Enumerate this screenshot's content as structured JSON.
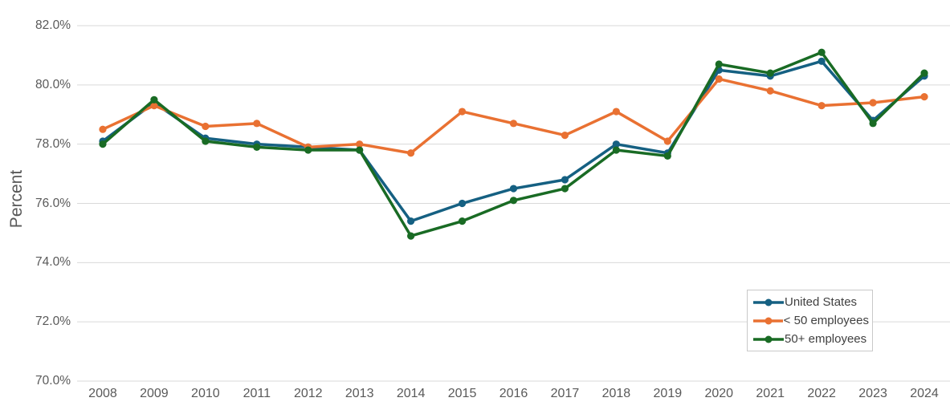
{
  "chart_data": {
    "type": "line",
    "title": "",
    "xlabel": "",
    "ylabel": "Percent",
    "categories": [
      "2008",
      "2009",
      "2010",
      "2011",
      "2012",
      "2013",
      "2014",
      "2015",
      "2016",
      "2017",
      "2018",
      "2019",
      "2020",
      "2021",
      "2022",
      "2023",
      "2024"
    ],
    "series": [
      {
        "name": "United States",
        "color": "#156082",
        "values": [
          78.1,
          79.4,
          78.2,
          78.0,
          77.9,
          77.8,
          75.4,
          76.0,
          76.5,
          76.8,
          78.0,
          77.7,
          80.5,
          80.3,
          80.8,
          78.8,
          80.3
        ]
      },
      {
        "name": "< 50 employees",
        "color": "#E97132",
        "values": [
          78.5,
          79.3,
          78.6,
          78.7,
          77.9,
          78.0,
          77.7,
          79.1,
          78.7,
          78.3,
          79.1,
          78.1,
          80.2,
          79.8,
          79.3,
          79.4,
          79.6
        ]
      },
      {
        "name": "50+ employees",
        "color": "#196B24",
        "values": [
          78.0,
          79.5,
          78.1,
          77.9,
          77.8,
          77.8,
          74.9,
          75.4,
          76.1,
          76.5,
          77.8,
          77.6,
          80.7,
          80.4,
          81.1,
          78.7,
          80.4
        ]
      }
    ],
    "ylim": [
      70,
      82
    ],
    "ytick_step": 2,
    "y_tick_labels": [
      "82.0%",
      "80.0%",
      "78.0%",
      "76.0%",
      "74.0%",
      "72.0%",
      "70.0%"
    ],
    "grid": "horizontal",
    "marker": "circle",
    "legend_position": "inside-bottom-right"
  },
  "style": {
    "background": "#FFFFFF",
    "grid_color": "#D9D9D9",
    "axis_text_color": "#595959",
    "legend_text_color": "#404040",
    "legend_border_color": "#C9C9C9"
  }
}
